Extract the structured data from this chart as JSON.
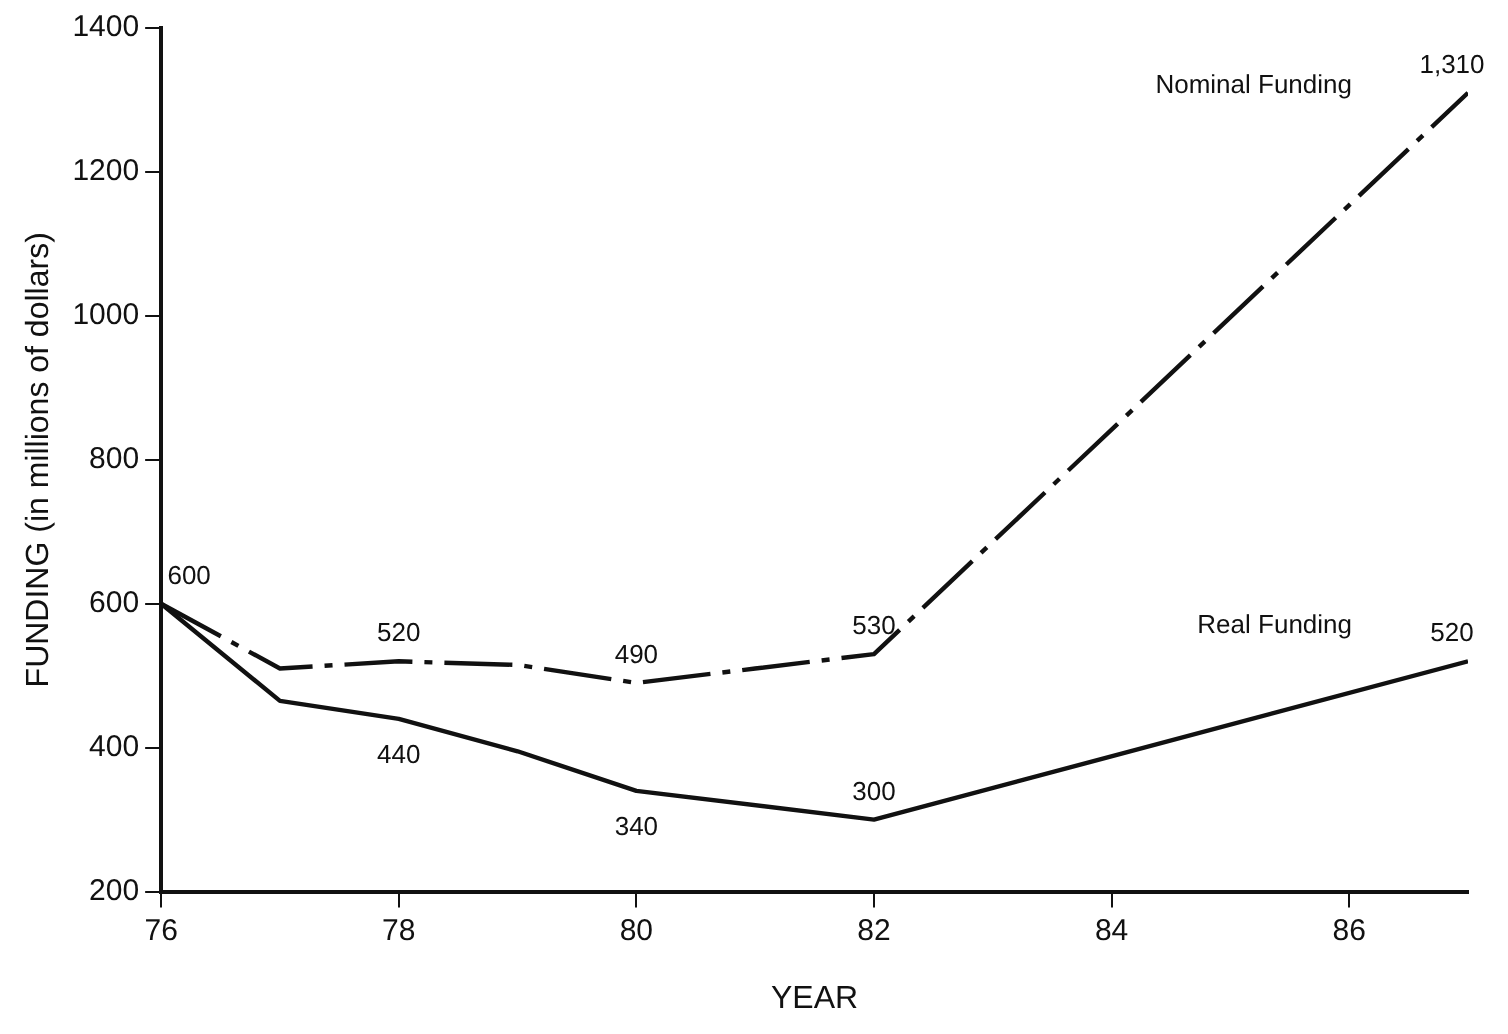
{
  "chart_data": {
    "type": "line",
    "xlabel": "YEAR",
    "ylabel": "FUNDING (in millions of dollars)",
    "xlim": [
      76,
      87
    ],
    "xticks": [
      76,
      78,
      80,
      82,
      84,
      86
    ],
    "ylim": [
      200,
      1400
    ],
    "yticks": [
      200,
      400,
      600,
      800,
      1000,
      1200,
      1400
    ],
    "grid": false,
    "legend": false,
    "marker": "none",
    "series": [
      {
        "name": "Nominal Funding",
        "color": "#111111",
        "line_style": "dashed",
        "x": [
          76,
          77,
          78,
          79,
          80,
          81,
          82,
          87
        ],
        "values": [
          600,
          510,
          520,
          515,
          490,
          510,
          530,
          1310
        ],
        "value_labels": [
          "600",
          null,
          "520",
          null,
          "490",
          null,
          "530",
          "1,310"
        ]
      },
      {
        "name": "Real Funding",
        "color": "#111111",
        "line_style": "solid",
        "x": [
          76,
          77,
          78,
          79,
          80,
          82,
          87
        ],
        "values": [
          600,
          465,
          440,
          395,
          340,
          300,
          520
        ],
        "value_labels": [
          null,
          null,
          "440",
          null,
          "340",
          "300",
          "520"
        ]
      }
    ]
  }
}
